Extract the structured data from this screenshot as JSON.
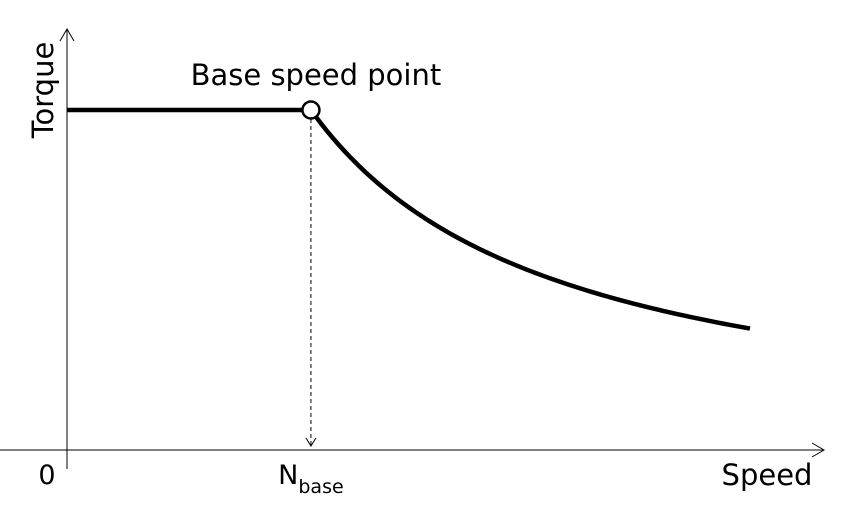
{
  "chart_data": {
    "type": "line",
    "title": "",
    "xlabel": "Speed",
    "ylabel": "Torque",
    "origin_label": "0",
    "xtick": {
      "main": "N",
      "subscript": "base"
    },
    "annotation": "Base speed point",
    "x_range": [
      0,
      2.8
    ],
    "y_range": [
      0,
      1.0
    ],
    "base_speed": 1.0,
    "rated_torque": 1.0,
    "series": [
      {
        "x": [
          0,
          0.5,
          1.0,
          1.2,
          1.4,
          1.6,
          1.8,
          2.0,
          2.2,
          2.4,
          2.6,
          2.8
        ],
        "y": [
          1.0,
          1.0,
          1.0,
          0.83,
          0.714,
          0.625,
          0.556,
          0.5,
          0.455,
          0.417,
          0.385,
          0.357
        ]
      }
    ],
    "grid": false,
    "legend": "none",
    "line_color": "#000000"
  }
}
